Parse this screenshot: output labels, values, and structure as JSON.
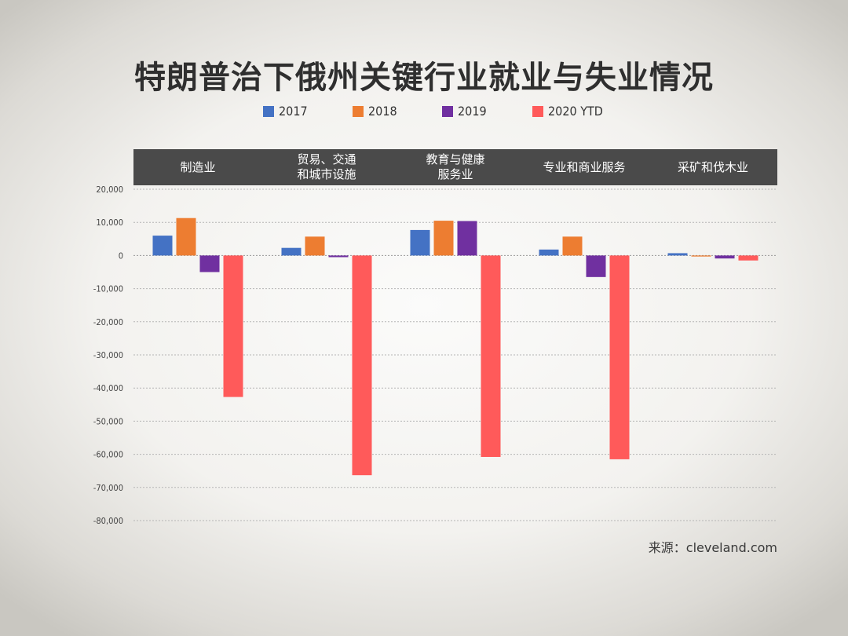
{
  "title": "特朗普治下俄州关键行业就业与失业情况",
  "source": "来源：cleveland.com",
  "colors": {
    "2017": "#4472c4",
    "2018": "#ed7d31",
    "2019": "#7030a0",
    "2020 YTD": "#ff5a5a"
  },
  "chart_data": {
    "type": "bar",
    "title": "特朗普治下俄州关键行业就业与失业情况",
    "categories": [
      "制造业",
      "贸易、交通\n和城市设施",
      "教育与健康\n服务业",
      "专业和商业服务",
      "采矿和伐木业"
    ],
    "series": [
      {
        "name": "2017",
        "values": [
          6000,
          2300,
          7700,
          1800,
          700
        ]
      },
      {
        "name": "2018",
        "values": [
          11300,
          5700,
          10500,
          5700,
          -300
        ]
      },
      {
        "name": "2019",
        "values": [
          -5000,
          -500,
          10400,
          -6500,
          -900
        ]
      },
      {
        "name": "2020 YTD",
        "values": [
          -42700,
          -66300,
          -60800,
          -61500,
          -1500
        ]
      }
    ],
    "ylim": [
      -80000,
      20000
    ],
    "yticks": [
      {
        "value": 20000,
        "label": "20,000"
      },
      {
        "value": 10000,
        "label": "10,000"
      },
      {
        "value": 0,
        "label": "0"
      },
      {
        "value": -10000,
        "label": "-10,000"
      },
      {
        "value": -20000,
        "label": "-20,000"
      },
      {
        "value": -30000,
        "label": "-30,000"
      },
      {
        "value": -40000,
        "label": "-40,000"
      },
      {
        "value": -50000,
        "label": "-50,000"
      },
      {
        "value": -60000,
        "label": "-60,000"
      },
      {
        "value": -70000,
        "label": "-70,000"
      },
      {
        "value": -80000,
        "label": "-80,000"
      }
    ],
    "grid": true,
    "legend": "top-center"
  }
}
